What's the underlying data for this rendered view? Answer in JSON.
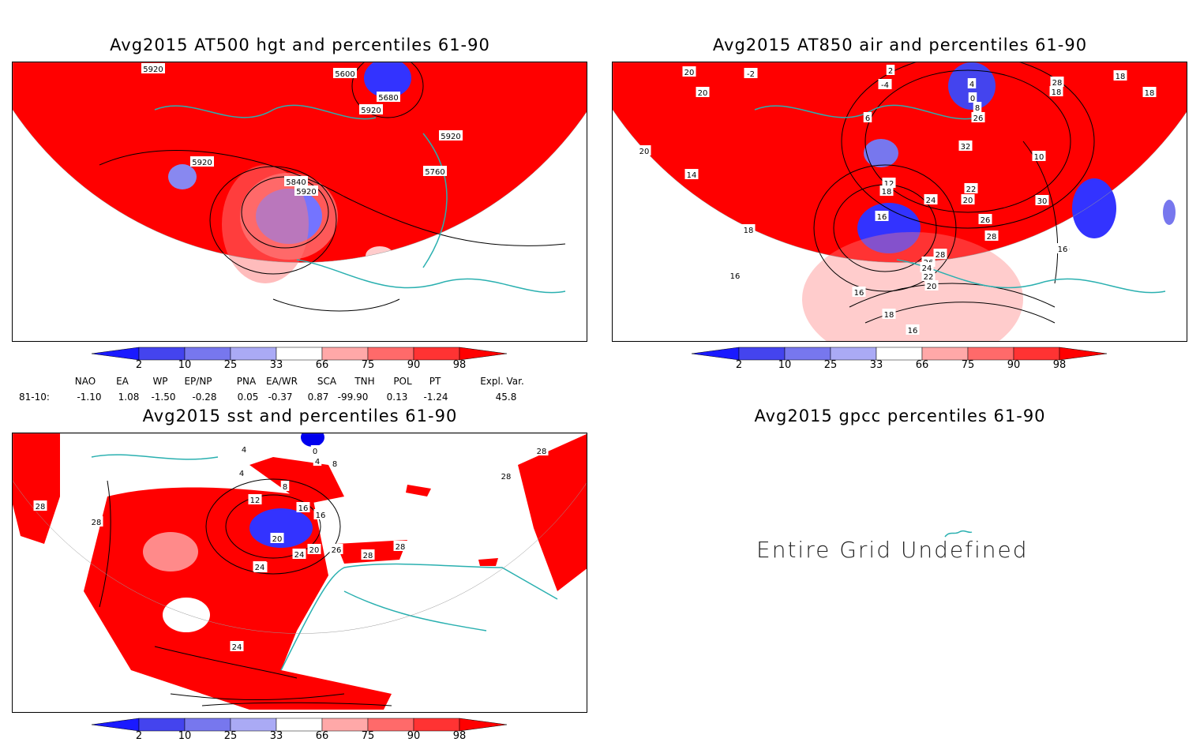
{
  "panels": [
    {
      "id": "p1",
      "title": "Avg2015 AT500 hgt and percentiles 61-90",
      "contour_labels": [
        "5920",
        "5920",
        "5600",
        "5680",
        "5920",
        "5920",
        "5760",
        "5840",
        "5920"
      ]
    },
    {
      "id": "p2",
      "title": "Avg2015 AT850 air and percentiles 61-90",
      "contour_labels": [
        "20",
        "20",
        "-2",
        "-4",
        "2",
        "4",
        "0",
        "6",
        "8",
        "26",
        "28",
        "18",
        "18",
        "18",
        "20",
        "14",
        "32",
        "10",
        "12",
        "18",
        "22",
        "20",
        "24",
        "30",
        "16",
        "26",
        "28",
        "18",
        "16",
        "28",
        "20",
        "26",
        "24",
        "22",
        "20",
        "16",
        "18",
        "16",
        "16"
      ]
    },
    {
      "id": "p3",
      "title": "Avg2015 sst and percentiles 61-90",
      "contour_labels": [
        "28",
        "28",
        "24",
        "4",
        "0",
        "4",
        "8",
        "4",
        "8",
        "12",
        "16",
        "16",
        "20",
        "20",
        "24",
        "24",
        "26",
        "28",
        "28",
        "28",
        "28",
        "24"
      ]
    },
    {
      "id": "p4",
      "title": "Avg2015 gpcc percentiles 61-90",
      "message": "Entire Grid Undefined"
    }
  ],
  "colorbar": {
    "labels": [
      "2",
      "10",
      "25",
      "33",
      "66",
      "75",
      "90",
      "98"
    ],
    "colors": [
      "#1a1aff",
      "#4444ee",
      "#7777ee",
      "#aaaaf5",
      "#ffffff",
      "#ffa8a8",
      "#ff6a6a",
      "#ff3333",
      "#ff0000"
    ]
  },
  "teleconnections": {
    "headers": [
      "NAO",
      "EA",
      "WP",
      "EP/NP",
      "PNA",
      "EA/WR",
      "SCA",
      "TNH",
      "POL",
      "PT",
      "Expl. Var."
    ],
    "row_label": "81-10:",
    "values": [
      "-1.10",
      "1.08",
      "-1.50",
      "-0.28",
      "0.05",
      "-0.37",
      "0.87",
      "-99.90",
      "0.13",
      "-1.24",
      "45.8"
    ]
  }
}
